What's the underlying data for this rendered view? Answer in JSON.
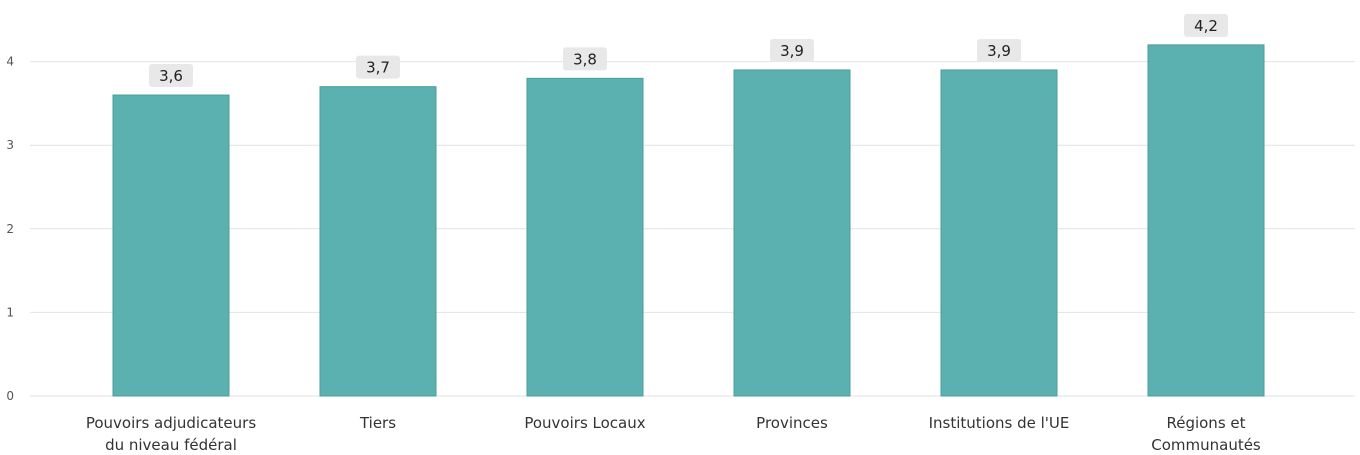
{
  "chart_data": {
    "type": "bar",
    "categories": [
      [
        "Pouvoirs adjudicateurs",
        "du niveau fédéral"
      ],
      [
        "Tiers"
      ],
      [
        "Pouvoirs Locaux"
      ],
      [
        "Provinces"
      ],
      [
        "Institutions de l'UE"
      ],
      [
        "Régions et",
        "Communautés"
      ]
    ],
    "values": [
      3.6,
      3.7,
      3.8,
      3.9,
      3.9,
      4.2
    ],
    "value_labels": [
      "3,6",
      "3,7",
      "3,8",
      "3,9",
      "3,9",
      "4,2"
    ],
    "yticks": [
      "0",
      "1",
      "2",
      "3",
      "4"
    ],
    "ylim": [
      0,
      4.2
    ],
    "grid": true,
    "legend": "none",
    "colors": {
      "bar": "#5BB0B0",
      "bar_stroke": "#4A9E9E",
      "grid": "#E2E2E2",
      "label_bg": "#E8E8E8"
    }
  }
}
